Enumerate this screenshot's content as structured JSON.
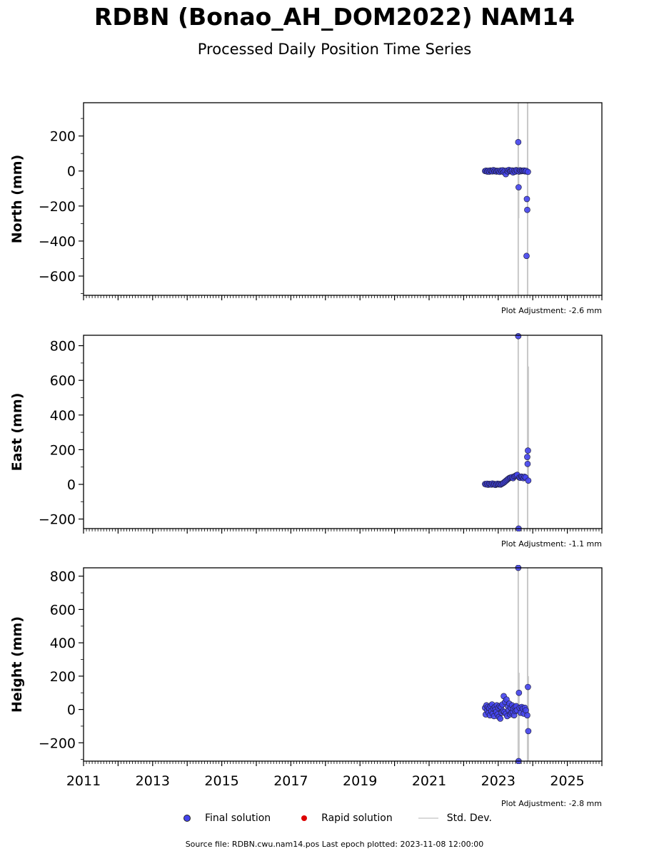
{
  "header": {
    "title": "RDBN (Bonao_AH_DOM2022) NAM14",
    "subtitle": "Processed Daily Position Time Series"
  },
  "legend": {
    "final": "Final solution",
    "rapid": "Rapid solution",
    "std": "Std. Dev."
  },
  "footer": "Source file: RDBN.cwu.nam14.pos  Last epoch plotted: 2023-11-08 12:00:00",
  "colors": {
    "final": "#4444ee",
    "rapid": "#dd0000",
    "std": "#c8c8c8"
  },
  "chart_data": [
    {
      "type": "scatter",
      "ylabel": "North (mm)",
      "adjustment": "Plot Adjustment: -2.6 mm",
      "xlim": [
        2011,
        2026
      ],
      "ylim": [
        -710,
        390
      ],
      "yticks": [
        -600,
        -400,
        -200,
        0,
        200
      ],
      "ytick_labels": [
        "−600",
        "−400",
        "−200",
        "0",
        "200"
      ],
      "std_bars": [
        [
          2023.58,
          -710,
          390
        ],
        [
          2023.85,
          -710,
          390
        ],
        [
          2023.59,
          -270,
          10
        ]
      ],
      "series": [
        {
          "x": [
            2022.62,
            2022.65,
            2022.68,
            2022.71,
            2022.74,
            2022.77,
            2022.8,
            2022.83,
            2022.86,
            2022.89,
            2022.92,
            2022.95,
            2022.98,
            2023.01,
            2023.04,
            2023.07,
            2023.1,
            2023.13,
            2023.16,
            2023.19,
            2023.22,
            2023.25,
            2023.28,
            2023.31,
            2023.34,
            2023.37,
            2023.4,
            2023.43,
            2023.46,
            2023.49,
            2023.52,
            2023.55,
            2023.6,
            2023.63,
            2023.66,
            2023.69,
            2023.72,
            2023.75,
            2023.78,
            2023.81,
            2023.58,
            2023.59,
            2023.83,
            2023.84,
            2023.82,
            2023.86
          ],
          "y": [
            0,
            2,
            -3,
            1,
            -4,
            3,
            0,
            -2,
            5,
            -1,
            2,
            -3,
            1,
            0,
            -5,
            3,
            -2,
            4,
            -6,
            1,
            -18,
            2,
            -3,
            6,
            -1,
            0,
            3,
            -8,
            2,
            -4,
            5,
            0,
            -3,
            4,
            -1,
            2,
            0,
            3,
            -2,
            1,
            165,
            -93,
            -160,
            -222,
            -485,
            -5
          ]
        }
      ]
    },
    {
      "type": "scatter",
      "ylabel": "East (mm)",
      "adjustment": "Plot Adjustment: -1.1 mm",
      "xlim": [
        2011,
        2026
      ],
      "ylim": [
        -255,
        860
      ],
      "yticks": [
        -200,
        0,
        200,
        400,
        600,
        800
      ],
      "ytick_labels": [
        "−200",
        "0",
        "200",
        "400",
        "600",
        "800"
      ],
      "std_bars": [
        [
          2023.58,
          -255,
          860
        ],
        [
          2023.85,
          -255,
          860
        ],
        [
          2023.87,
          0,
          680
        ]
      ],
      "series": [
        {
          "x": [
            2022.62,
            2022.65,
            2022.68,
            2022.71,
            2022.74,
            2022.77,
            2022.8,
            2022.83,
            2022.86,
            2022.89,
            2022.92,
            2022.95,
            2022.98,
            2023.01,
            2023.04,
            2023.07,
            2023.1,
            2023.13,
            2023.16,
            2023.19,
            2023.22,
            2023.25,
            2023.28,
            2023.31,
            2023.34,
            2023.37,
            2023.4,
            2023.43,
            2023.46,
            2023.49,
            2023.52,
            2023.55,
            2023.61,
            2023.64,
            2023.67,
            2023.7,
            2023.73,
            2023.76,
            2023.79,
            2023.58,
            2023.59,
            2023.84,
            2023.85,
            2023.86,
            2023.87
          ],
          "y": [
            2,
            0,
            4,
            -2,
            3,
            1,
            -1,
            5,
            0,
            2,
            -3,
            1,
            4,
            0,
            2,
            -1,
            3,
            6,
            10,
            15,
            20,
            25,
            30,
            35,
            38,
            40,
            42,
            36,
            45,
            48,
            52,
            55,
            40,
            38,
            45,
            42,
            36,
            44,
            40,
            855,
            -255,
            158,
            118,
            195,
            22
          ]
        }
      ]
    },
    {
      "type": "scatter",
      "ylabel": "Height (mm)",
      "adjustment": "Plot Adjustment: -2.8 mm",
      "xlim": [
        2011,
        2026
      ],
      "ylim": [
        -310,
        850
      ],
      "yticks": [
        -200,
        0,
        200,
        400,
        600,
        800
      ],
      "ytick_labels": [
        "−200",
        "0",
        "200",
        "400",
        "600",
        "800"
      ],
      "xticks": [
        2011,
        2013,
        2015,
        2017,
        2019,
        2021,
        2023,
        2025
      ],
      "xtick_labels": [
        "2011",
        "2013",
        "2015",
        "2017",
        "2019",
        "2021",
        "2023",
        "2025"
      ],
      "std_bars": [
        [
          2023.58,
          -310,
          850
        ],
        [
          2023.85,
          -310,
          850
        ],
        [
          2023.6,
          -310,
          220
        ],
        [
          2023.87,
          -310,
          200
        ]
      ],
      "series": [
        {
          "x": [
            2022.62,
            2022.64,
            2022.66,
            2022.68,
            2022.7,
            2022.72,
            2022.74,
            2022.76,
            2022.78,
            2022.8,
            2022.82,
            2022.84,
            2022.86,
            2022.88,
            2022.9,
            2022.92,
            2022.94,
            2022.96,
            2022.98,
            2023.0,
            2023.02,
            2023.04,
            2023.06,
            2023.08,
            2023.1,
            2023.12,
            2023.14,
            2023.16,
            2023.18,
            2023.2,
            2023.22,
            2023.24,
            2023.26,
            2023.28,
            2023.3,
            2023.32,
            2023.34,
            2023.36,
            2023.38,
            2023.4,
            2023.42,
            2023.44,
            2023.46,
            2023.48,
            2023.5,
            2023.52,
            2023.54,
            2023.62,
            2023.65,
            2023.68,
            2023.71,
            2023.74,
            2023.77,
            2023.8,
            2023.58,
            2023.59,
            2023.6,
            2023.84,
            2023.86,
            2023.87
          ],
          "y": [
            10,
            -30,
            25,
            -5,
            15,
            -20,
            8,
            -35,
            20,
            -10,
            30,
            -25,
            5,
            -40,
            15,
            0,
            -15,
            25,
            -30,
            10,
            -45,
            20,
            -55,
            15,
            -20,
            30,
            -10,
            80,
            -15,
            45,
            -25,
            60,
            -40,
            20,
            -5,
            35,
            -30,
            10,
            -20,
            25,
            -15,
            5,
            -35,
            15,
            -10,
            20,
            -5,
            10,
            -20,
            15,
            5,
            -25,
            10,
            -5,
            850,
            -310,
            100,
            -35,
            135,
            -130
          ]
        }
      ]
    }
  ]
}
